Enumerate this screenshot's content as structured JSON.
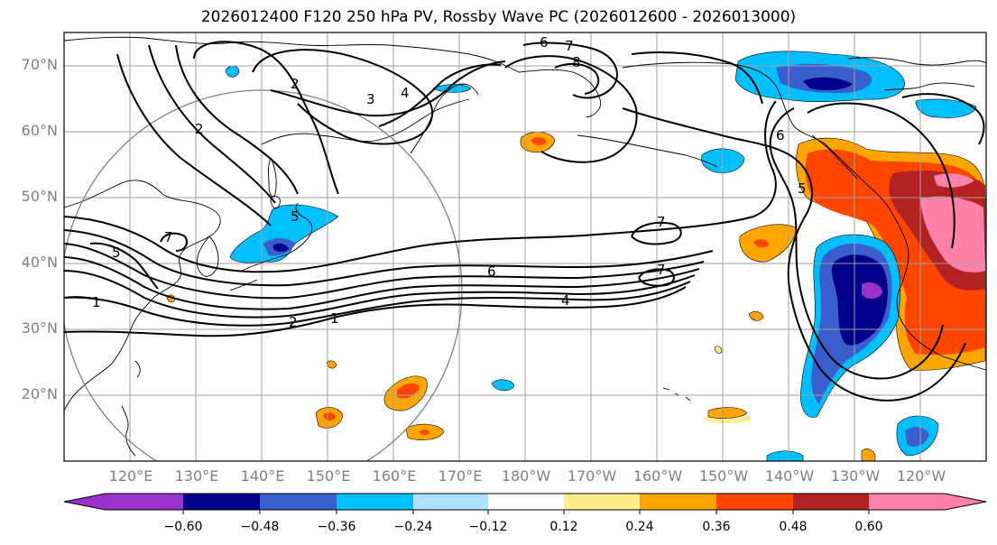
{
  "title": "2026012400 F120 250 hPa PV, Rossby Wave PC (2026012600 - 2026013000)",
  "map": {
    "projection": "PlateCarree",
    "extent": {
      "lon_min": 110,
      "lon_max": 250,
      "lat_min": 10,
      "lat_max": 75
    },
    "lat_labels": [
      "70°N",
      "60°N",
      "50°N",
      "40°N",
      "30°N",
      "20°N"
    ],
    "lon_labels": [
      "120°E",
      "130°E",
      "140°E",
      "150°E",
      "160°E",
      "170°E",
      "180°W",
      "170°W",
      "160°W",
      "150°W",
      "140°W",
      "130°W",
      "120°W"
    ],
    "gridlines": true,
    "contour_labels": [
      "1",
      "2",
      "2",
      "3",
      "4",
      "5",
      "5",
      "6",
      "6",
      "7",
      "7",
      "7",
      "7",
      "8",
      "1",
      "2",
      "4",
      "5",
      "6"
    ]
  },
  "colorbar": {
    "ticks": [
      "−0.60",
      "−0.48",
      "−0.36",
      "−0.24",
      "−0.12",
      "0.12",
      "0.24",
      "0.36",
      "0.48",
      "0.60"
    ],
    "colors": [
      "#9932cc",
      "#00008b",
      "#3a5fcd",
      "#00bfff",
      "#b0e2ff",
      "#ffffff",
      "#ffec8b",
      "#ffa500",
      "#ff4500",
      "#b22222",
      "#ff82ab"
    ]
  },
  "colors": {
    "grid": "#a0a0a0",
    "coast": "#000000",
    "contour": "#000000",
    "circle": "#808080",
    "tick_text": "#808080"
  }
}
